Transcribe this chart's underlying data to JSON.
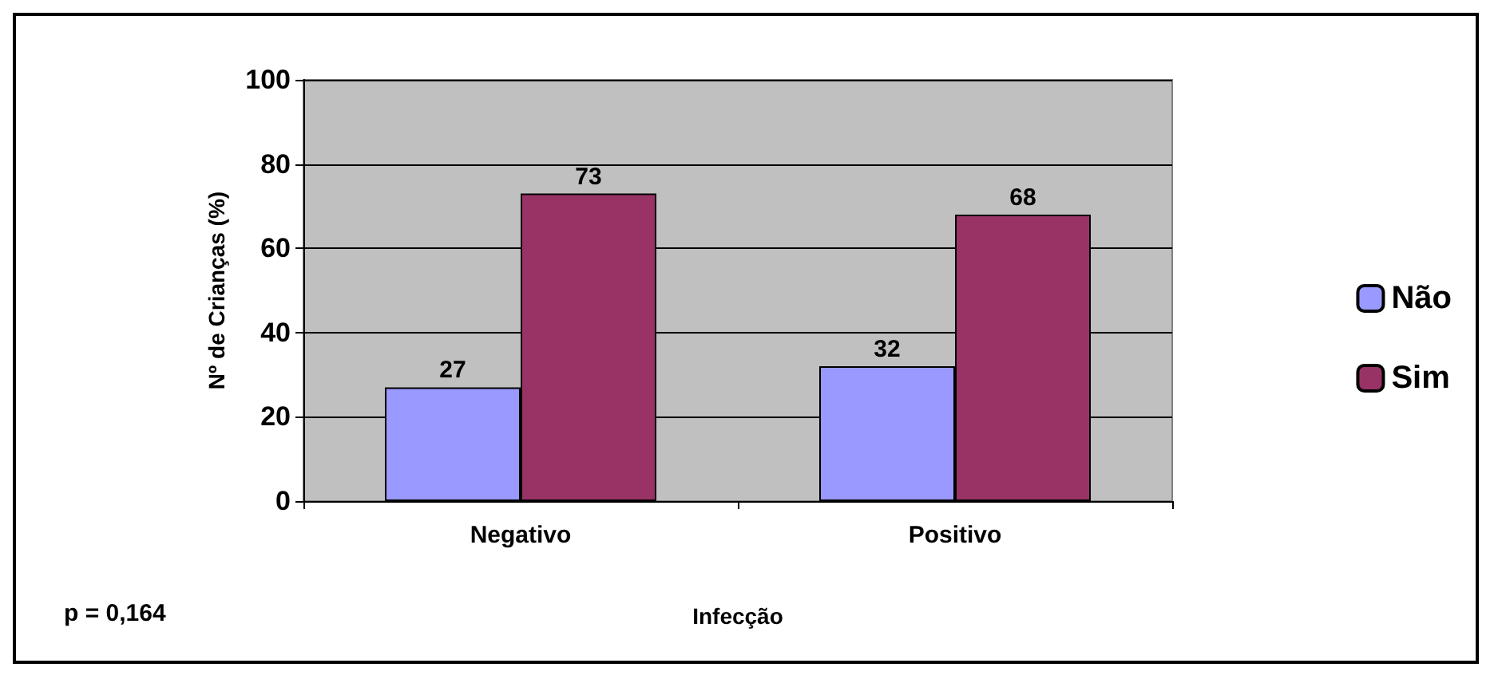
{
  "chart_data": {
    "type": "bar",
    "xlabel": "Infecção",
    "ylabel": "Nº de Crianças (%)",
    "categories": [
      "Negativo",
      "Positivo"
    ],
    "series": [
      {
        "name": "Não",
        "color": "#9999ff",
        "values": [
          27,
          32
        ]
      },
      {
        "name": "Sim",
        "color": "#993366",
        "values": [
          73,
          68
        ]
      }
    ],
    "ylim": [
      0,
      100
    ],
    "yticks": [
      0,
      20,
      40,
      60,
      80,
      100
    ],
    "grid": "y",
    "legend": "right",
    "data_labels": true,
    "annotations": [
      "p = 0,164"
    ]
  }
}
